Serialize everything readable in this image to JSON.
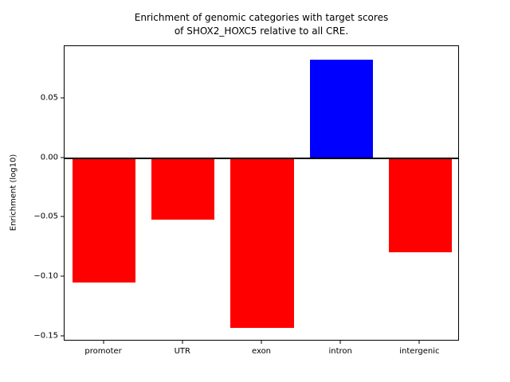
{
  "title_line1": "Enrichment of genomic categories with target scores",
  "title_line2": "of SHOX2_HOXC5 relative to all CRE.",
  "chart_data": {
    "type": "bar",
    "title": "Enrichment of genomic categories with target scores of SHOX2_HOXC5 relative to all CRE.",
    "categories": [
      "promoter",
      "UTR",
      "exon",
      "intron",
      "intergenic"
    ],
    "values": [
      -0.105,
      -0.052,
      -0.143,
      0.083,
      -0.079
    ],
    "xlabel": "",
    "ylabel": "Enrichment (log10)",
    "ylim": [
      -0.1543,
      0.0943
    ],
    "yticks": [
      0.05,
      0.0,
      -0.05,
      -0.1,
      -0.15
    ],
    "positive_color": "#0000ff",
    "negative_color": "#ff0000",
    "axis_color": "#000000",
    "background_color": "#ffffff",
    "zero_line": true,
    "grid": false,
    "legend": "none",
    "bar_width_fraction": 0.8
  }
}
